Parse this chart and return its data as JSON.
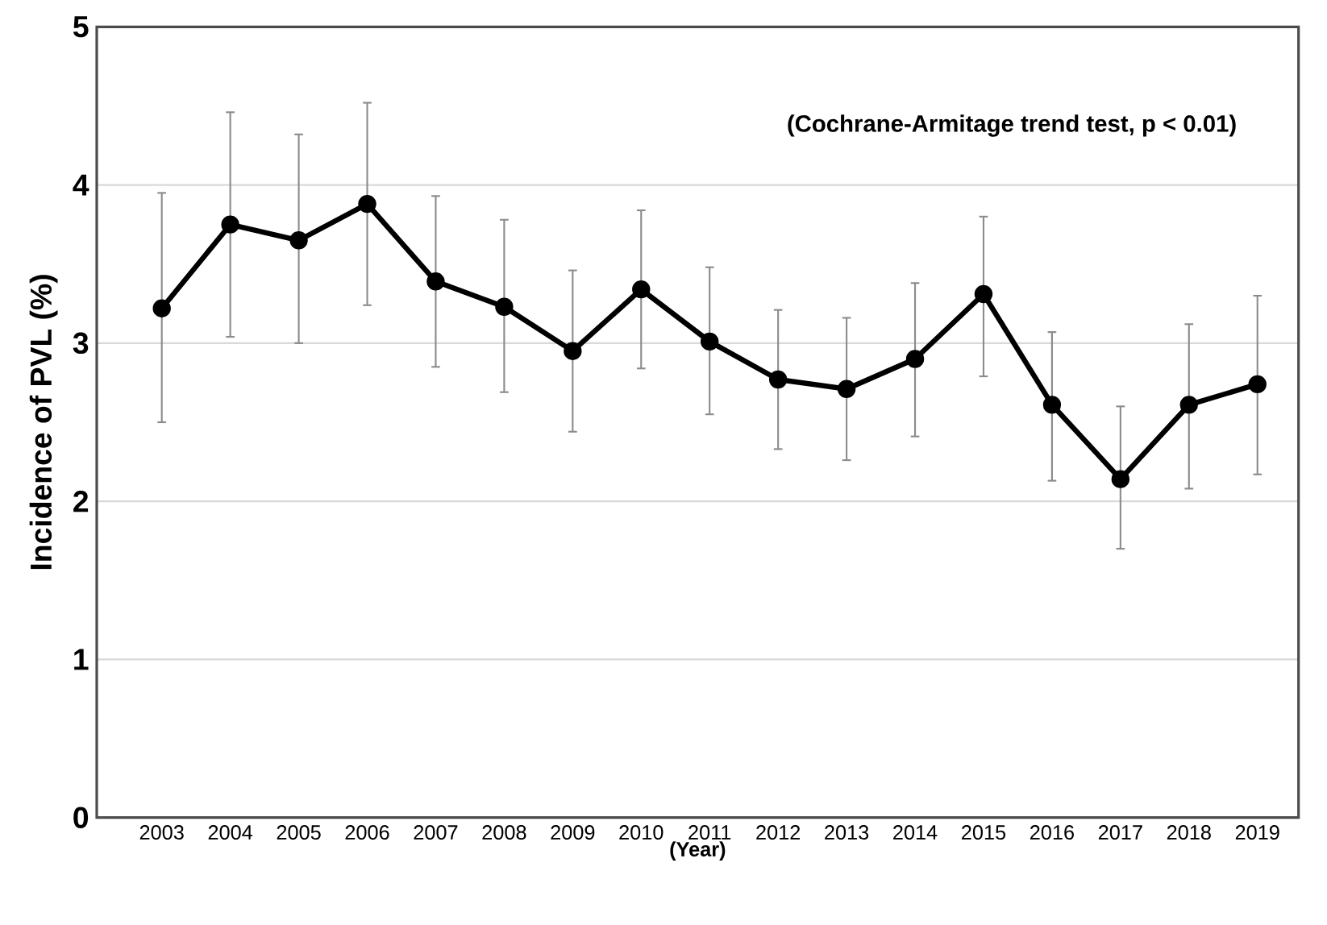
{
  "chart_data": {
    "type": "line",
    "ylabel": "Incidence of PVL (%)",
    "xlabel": "(Year)",
    "annotations": [
      "(Cochrane-Armitage trend test, p < 0.01)"
    ],
    "categories": [
      "2003",
      "2004",
      "2005",
      "2006",
      "2007",
      "2008",
      "2009",
      "2010",
      "2011",
      "2012",
      "2013",
      "2014",
      "2015",
      "2016",
      "2017",
      "2018",
      "2019"
    ],
    "values": [
      3.22,
      3.75,
      3.65,
      3.88,
      3.39,
      3.23,
      2.95,
      3.34,
      3.01,
      2.77,
      2.71,
      2.9,
      3.31,
      2.61,
      2.14,
      2.61,
      2.74
    ],
    "errors": [
      [
        2.5,
        3.95
      ],
      [
        3.04,
        4.46
      ],
      [
        3.0,
        4.32
      ],
      [
        3.24,
        4.52
      ],
      [
        2.85,
        3.93
      ],
      [
        2.69,
        3.78
      ],
      [
        2.44,
        3.46
      ],
      [
        2.84,
        3.84
      ],
      [
        2.55,
        3.48
      ],
      [
        2.33,
        3.21
      ],
      [
        2.26,
        3.16
      ],
      [
        2.41,
        3.38
      ],
      [
        2.79,
        3.8
      ],
      [
        2.13,
        3.07
      ],
      [
        1.7,
        2.6
      ],
      [
        2.08,
        3.12
      ],
      [
        2.17,
        3.3
      ]
    ],
    "color": "#000000",
    "ylim": [
      0,
      5
    ],
    "yticks": [
      0,
      1,
      2,
      3,
      4,
      5
    ],
    "grid": "y",
    "marker": "circle",
    "line_style": "solid"
  }
}
